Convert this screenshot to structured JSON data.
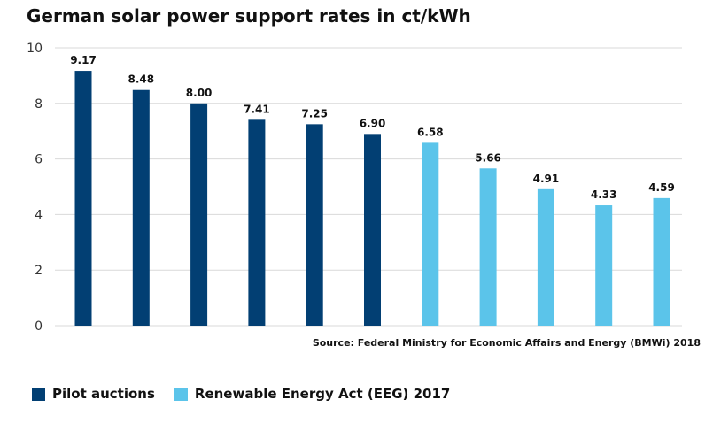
{
  "chart_data": {
    "type": "bar",
    "title": "German solar power support rates in ct/kWh",
    "categories": [
      "",
      "",
      "",
      "",
      "",
      "",
      "",
      "",
      "",
      "",
      ""
    ],
    "values": [
      9.17,
      8.48,
      8.0,
      7.41,
      7.25,
      6.9,
      6.58,
      5.66,
      4.91,
      4.33,
      4.59
    ],
    "value_labels": [
      "9.17",
      "8.48",
      "8.00",
      "7.41",
      "7.25",
      "6.90",
      "6.58",
      "5.66",
      "4.91",
      "4.33",
      "4.59"
    ],
    "series_of_bar": [
      0,
      0,
      0,
      0,
      0,
      0,
      1,
      1,
      1,
      1,
      1
    ],
    "series": [
      {
        "name": "Pilot auctions",
        "color": "#023f73"
      },
      {
        "name": "Renewable Energy Act (EEG) 2017",
        "color": "#5bc4ea"
      }
    ],
    "ylim": [
      0,
      10
    ],
    "yticks": [
      "0",
      "2",
      "4",
      "6",
      "8",
      "10"
    ],
    "grid": true,
    "legend": "bottom-left",
    "source": "Source: Federal Ministry for Economic Affairs and Energy (BMWi) 2018"
  }
}
